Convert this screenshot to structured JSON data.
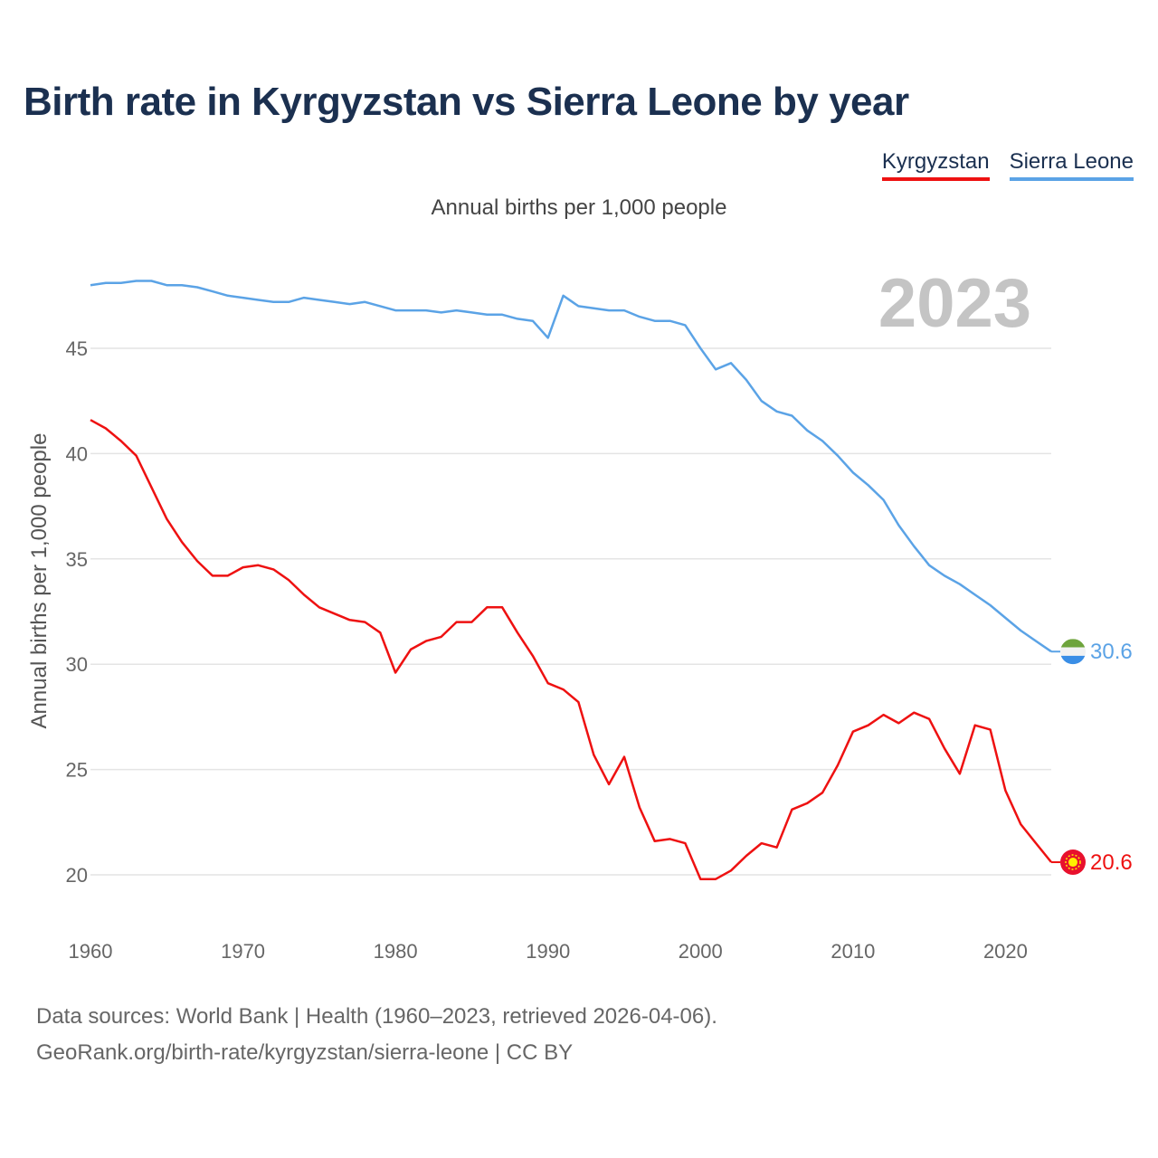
{
  "title": "Birth rate in Kyrgyzstan vs Sierra Leone by year",
  "subtitle": "Annual births per 1,000 people",
  "footer": {
    "line1": "Data sources: World Bank | Health (1960–2023, retrieved 2026-04-06).",
    "line2": "GeoRank.org/birth-rate/kyrgyzstan/sierra-leone | CC BY"
  },
  "chart_data": {
    "type": "line",
    "title": "Birth rate in Kyrgyzstan vs Sierra Leone by year",
    "subtitle": "Annual births per 1,000 people",
    "xlabel": "",
    "ylabel": "Annual births per 1,000 people",
    "year_label": "2023",
    "xlim": [
      1960,
      2023
    ],
    "ylim": [
      18,
      50
    ],
    "x_ticks": [
      "1960",
      "1970",
      "1980",
      "1990",
      "2000",
      "2010",
      "2020"
    ],
    "y_ticks": [
      "20",
      "25",
      "30",
      "35",
      "40",
      "45"
    ],
    "legend_position": "top-right",
    "grid": true,
    "x": [
      1960,
      1961,
      1962,
      1963,
      1964,
      1965,
      1966,
      1967,
      1968,
      1969,
      1970,
      1971,
      1972,
      1973,
      1974,
      1975,
      1976,
      1977,
      1978,
      1979,
      1980,
      1981,
      1982,
      1983,
      1984,
      1985,
      1986,
      1987,
      1988,
      1989,
      1990,
      1991,
      1992,
      1993,
      1994,
      1995,
      1996,
      1997,
      1998,
      1999,
      2000,
      2001,
      2002,
      2003,
      2004,
      2005,
      2006,
      2007,
      2008,
      2009,
      2010,
      2011,
      2012,
      2013,
      2014,
      2015,
      2016,
      2017,
      2018,
      2019,
      2020,
      2021,
      2022,
      2023
    ],
    "series": [
      {
        "name": "Kyrgyzstan",
        "color": "#ee1111",
        "end_label": "20.6",
        "values": [
          41.6,
          41.2,
          40.6,
          39.9,
          38.4,
          36.9,
          35.8,
          34.9,
          34.2,
          34.2,
          34.6,
          34.7,
          34.5,
          34.0,
          33.3,
          32.7,
          32.4,
          32.1,
          32.0,
          31.5,
          29.6,
          30.7,
          31.1,
          31.3,
          32.0,
          32.0,
          32.7,
          32.7,
          31.5,
          30.4,
          29.1,
          28.8,
          28.2,
          25.7,
          24.3,
          25.6,
          23.2,
          21.6,
          21.7,
          21.5,
          19.8,
          19.8,
          20.2,
          20.9,
          21.5,
          21.3,
          23.1,
          23.4,
          23.9,
          25.2,
          26.8,
          27.1,
          27.6,
          27.2,
          27.7,
          27.4,
          26.0,
          24.8,
          27.1,
          26.9,
          24.0,
          22.4,
          21.5,
          20.6
        ]
      },
      {
        "name": "Sierra Leone",
        "color": "#5ba3e6",
        "end_label": "30.6",
        "values": [
          48.0,
          48.1,
          48.1,
          48.2,
          48.2,
          48.0,
          48.0,
          47.9,
          47.7,
          47.5,
          47.4,
          47.3,
          47.2,
          47.2,
          47.4,
          47.3,
          47.2,
          47.1,
          47.2,
          47.0,
          46.8,
          46.8,
          46.8,
          46.7,
          46.8,
          46.7,
          46.6,
          46.6,
          46.4,
          46.3,
          45.5,
          47.5,
          47.0,
          46.9,
          46.8,
          46.8,
          46.5,
          46.3,
          46.3,
          46.1,
          45.0,
          44.0,
          44.3,
          43.5,
          42.5,
          42.0,
          41.8,
          41.1,
          40.6,
          39.9,
          39.1,
          38.5,
          37.8,
          36.6,
          35.6,
          34.7,
          34.2,
          33.8,
          33.3,
          32.8,
          32.2,
          31.6,
          31.1,
          30.6
        ]
      }
    ]
  }
}
